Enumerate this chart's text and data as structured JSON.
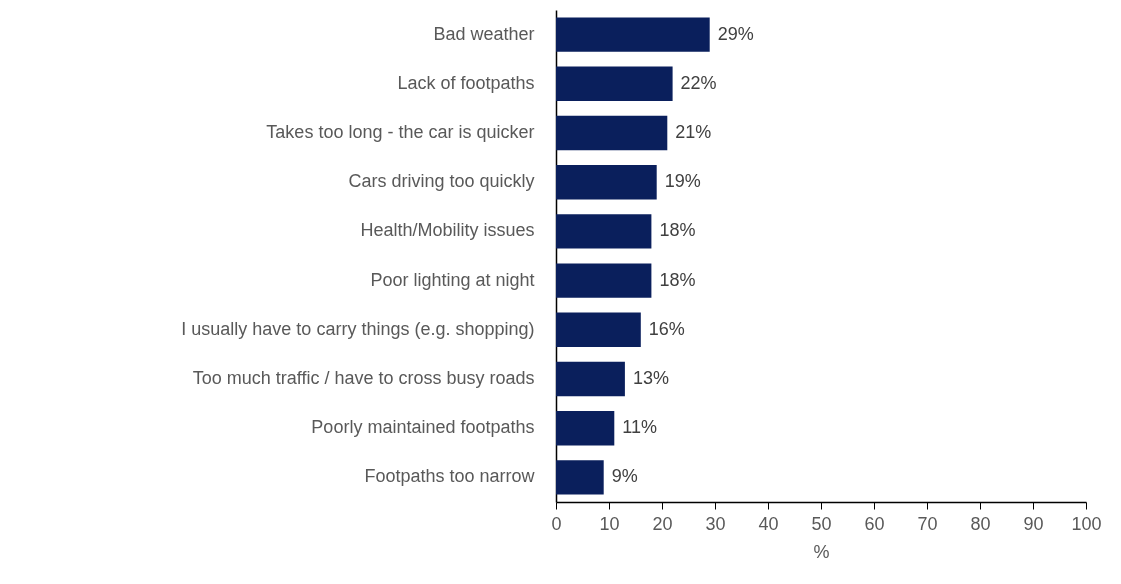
{
  "chart_data": {
    "type": "bar",
    "orientation": "horizontal",
    "xlabel": "%",
    "categories": [
      "Bad weather",
      "Lack of footpaths",
      "Takes too long - the car is quicker",
      "Cars driving too quickly",
      "Health/Mobility issues",
      "Poor lighting at night",
      "I usually have to carry things (e.g. shopping)",
      "Too much traffic / have to cross busy roads",
      "Poorly maintained footpaths",
      "Footpaths too narrow"
    ],
    "values": [
      29,
      22,
      21,
      19,
      18,
      18,
      16,
      13,
      11,
      9
    ],
    "value_labels": [
      "29%",
      "22%",
      "21%",
      "19%",
      "18%",
      "18%",
      "16%",
      "13%",
      "11%",
      "9%"
    ],
    "color": "#0a1f5c",
    "xlim": [
      0,
      100
    ],
    "xticks": [
      0,
      10,
      20,
      30,
      40,
      50,
      60,
      70,
      80,
      90,
      100
    ]
  }
}
